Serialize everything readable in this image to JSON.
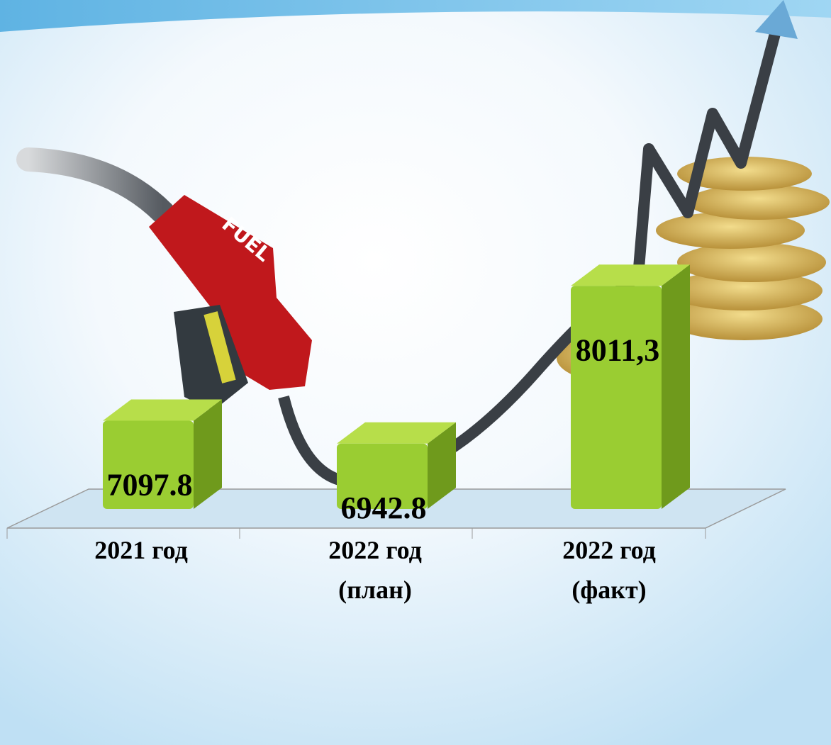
{
  "chart_data": {
    "type": "bar3d",
    "categories": [
      "2021 год",
      "2022 год (план)",
      "2022 год (факт)"
    ],
    "values": [
      7097.8,
      6942.8,
      8011.3
    ],
    "value_labels": [
      "7097.8",
      "6942.8",
      "8011,3"
    ],
    "color": "#9acd32",
    "ylim": [
      6500,
      8200
    ]
  }
}
